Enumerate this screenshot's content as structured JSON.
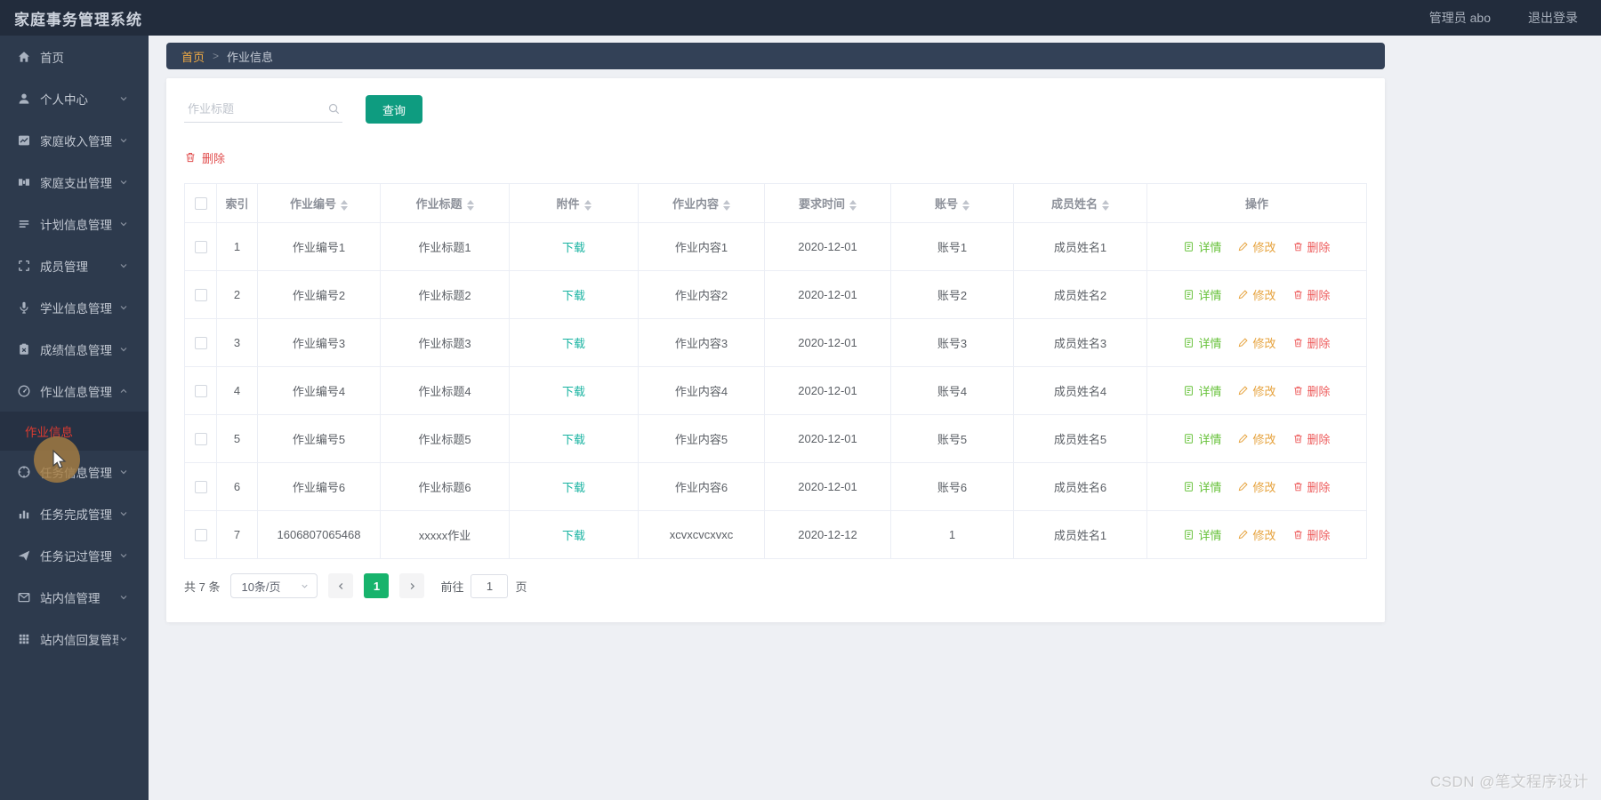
{
  "app": {
    "title": "家庭事务管理系统",
    "admin_label": "管理员 abo",
    "logout_label": "退出登录",
    "watermark": "CSDN @笔文程序设计"
  },
  "colors": {
    "header_bg": "#222c3c",
    "sidebar_bg": "#2d3a4d",
    "sidebar_active_text": "#dd3b30",
    "breadcrumb_bg": "#334157",
    "breadcrumb_home": "#efa944",
    "accent_teal": "#0e9c80",
    "download_link": "#18b3a1",
    "pagination_active": "#17b36c",
    "detail_green": "#67c23a",
    "edit_orange": "#e6a23c",
    "delete_red": "#ed5b5b"
  },
  "sidebar": {
    "items": [
      {
        "name": "home",
        "label": "首页",
        "icon": "home-icon",
        "chevron": null
      },
      {
        "name": "personal-center",
        "label": "个人中心",
        "icon": "user-icon",
        "chevron": "down"
      },
      {
        "name": "family-income",
        "label": "家庭收入管理",
        "icon": "income-chart-icon",
        "chevron": "down"
      },
      {
        "name": "family-expense",
        "label": "家庭支出管理",
        "icon": "expense-icon",
        "chevron": "down"
      },
      {
        "name": "plan-info",
        "label": "计划信息管理",
        "icon": "plan-list-icon",
        "chevron": "down"
      },
      {
        "name": "member-management",
        "label": "成员管理",
        "icon": "member-frame-icon",
        "chevron": "down"
      },
      {
        "name": "study-info",
        "label": "学业信息管理",
        "icon": "study-mic-icon",
        "chevron": "down"
      },
      {
        "name": "score-info",
        "label": "成绩信息管理",
        "icon": "score-clipboard-icon",
        "chevron": "down"
      },
      {
        "name": "homework-info",
        "label": "作业信息管理",
        "icon": "homework-dashboard-icon",
        "chevron": "up",
        "children": [
          {
            "name": "homework-info-item",
            "label": "作业信息",
            "active": true
          }
        ]
      },
      {
        "name": "task-info",
        "label": "任务信息管理",
        "icon": "task-compass-icon",
        "chevron": "down"
      },
      {
        "name": "task-completion",
        "label": "任务完成管理",
        "icon": "task-done-chart-icon",
        "chevron": "down"
      },
      {
        "name": "task-record",
        "label": "任务记过管理",
        "icon": "task-record-plane-icon",
        "chevron": "down"
      },
      {
        "name": "site-message",
        "label": "站内信管理",
        "icon": "mail-icon",
        "chevron": "down"
      },
      {
        "name": "site-message-reply",
        "label": "站内信回复管理",
        "icon": "mail-reply-grid-icon",
        "chevron": "down"
      }
    ]
  },
  "breadcrumb": {
    "home": "首页",
    "separator": ">",
    "current": "作业信息"
  },
  "toolbar": {
    "search_placeholder": "作业标题",
    "search_button": "查询",
    "delete_button": "删除"
  },
  "table": {
    "columns": [
      {
        "key": "select",
        "label": "",
        "type": "checkbox",
        "sortable": false
      },
      {
        "key": "index",
        "label": "索引",
        "sortable": false
      },
      {
        "key": "number",
        "label": "作业编号",
        "sortable": true
      },
      {
        "key": "title",
        "label": "作业标题",
        "sortable": true
      },
      {
        "key": "attachment",
        "label": "附件",
        "sortable": true
      },
      {
        "key": "content",
        "label": "作业内容",
        "sortable": true
      },
      {
        "key": "time",
        "label": "要求时间",
        "sortable": true
      },
      {
        "key": "account",
        "label": "账号",
        "sortable": true
      },
      {
        "key": "member",
        "label": "成员姓名",
        "sortable": true
      },
      {
        "key": "actions",
        "label": "操作",
        "sortable": false
      }
    ],
    "rows": [
      {
        "index": "1",
        "number": "作业编号1",
        "title": "作业标题1",
        "attachment": "下载",
        "content": "作业内容1",
        "time": "2020-12-01",
        "account": "账号1",
        "member": "成员姓名1"
      },
      {
        "index": "2",
        "number": "作业编号2",
        "title": "作业标题2",
        "attachment": "下载",
        "content": "作业内容2",
        "time": "2020-12-01",
        "account": "账号2",
        "member": "成员姓名2"
      },
      {
        "index": "3",
        "number": "作业编号3",
        "title": "作业标题3",
        "attachment": "下载",
        "content": "作业内容3",
        "time": "2020-12-01",
        "account": "账号3",
        "member": "成员姓名3"
      },
      {
        "index": "4",
        "number": "作业编号4",
        "title": "作业标题4",
        "attachment": "下载",
        "content": "作业内容4",
        "time": "2020-12-01",
        "account": "账号4",
        "member": "成员姓名4"
      },
      {
        "index": "5",
        "number": "作业编号5",
        "title": "作业标题5",
        "attachment": "下载",
        "content": "作业内容5",
        "time": "2020-12-01",
        "account": "账号5",
        "member": "成员姓名5"
      },
      {
        "index": "6",
        "number": "作业编号6",
        "title": "作业标题6",
        "attachment": "下载",
        "content": "作业内容6",
        "time": "2020-12-01",
        "account": "账号6",
        "member": "成员姓名6"
      },
      {
        "index": "7",
        "number": "1606807065468",
        "title": "xxxxx作业",
        "attachment": "下载",
        "content": "xcvxcvcxvxc",
        "time": "2020-12-12",
        "account": "1",
        "member": "成员姓名1"
      }
    ],
    "row_actions": [
      {
        "name": "detail",
        "label": "详情"
      },
      {
        "name": "edit",
        "label": "修改"
      },
      {
        "name": "delete",
        "label": "删除"
      }
    ]
  },
  "pagination": {
    "total_label": "共 7 条",
    "page_size": "10条/页",
    "current_page": "1",
    "goto_label": "前往",
    "goto_value": "1",
    "page_label": "页"
  }
}
